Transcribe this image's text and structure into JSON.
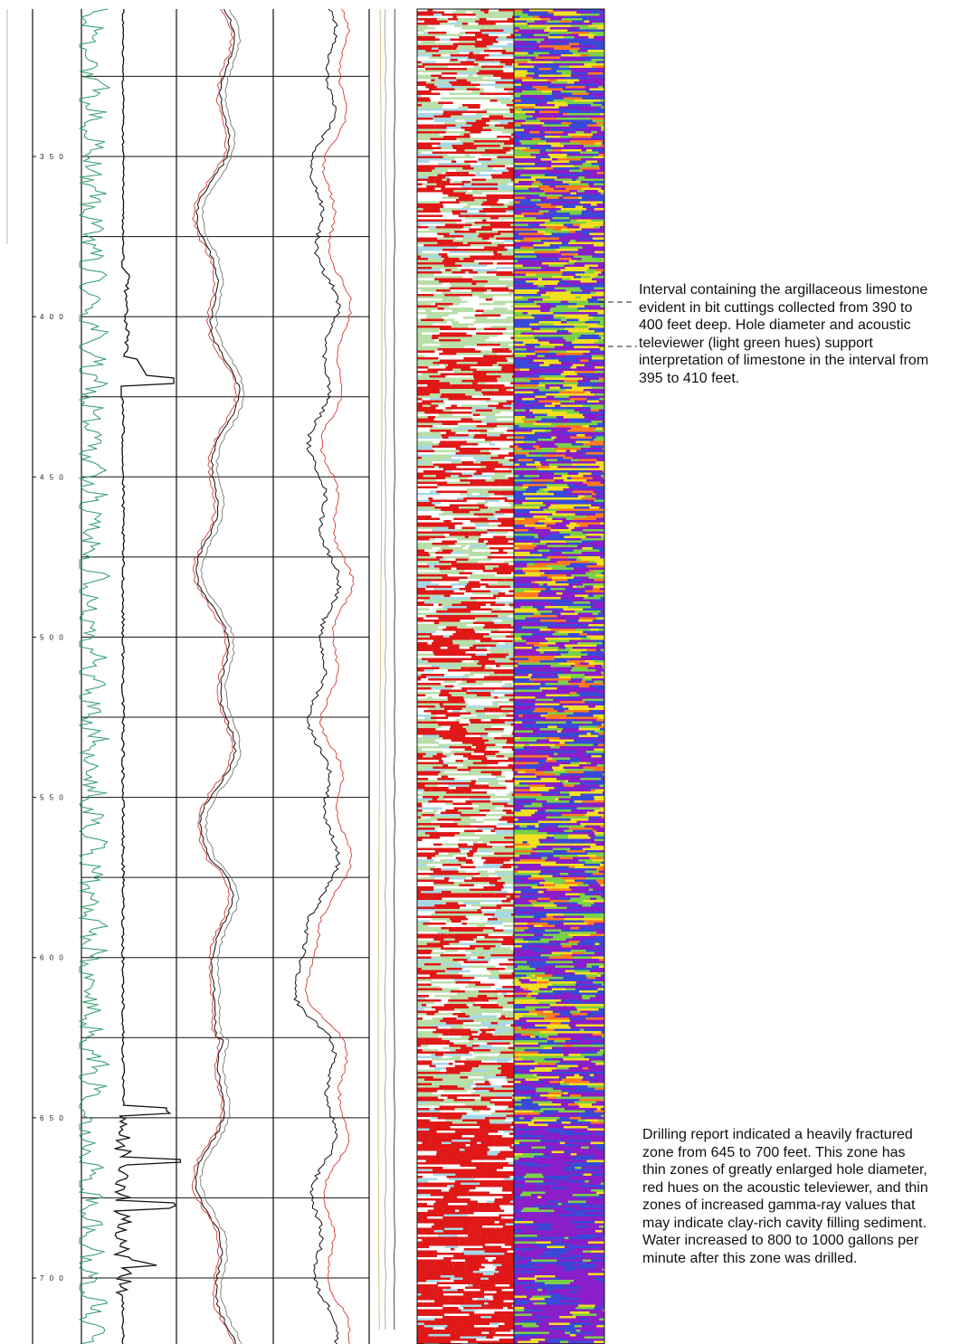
{
  "log": {
    "depth_top_ft": 300,
    "depth_bottom_ft": 730,
    "depth_ticks": [
      {
        "depth": 350,
        "label": "3 5 0"
      },
      {
        "depth": 400,
        "label": "4 0 0"
      },
      {
        "depth": 450,
        "label": "4 5 0"
      },
      {
        "depth": 500,
        "label": "5 0 0"
      },
      {
        "depth": 550,
        "label": "5 5 0"
      },
      {
        "depth": 600,
        "label": "6 0 0"
      },
      {
        "depth": 650,
        "label": "6 5 0"
      },
      {
        "depth": 700,
        "label": "7 0 0"
      }
    ],
    "colors": {
      "gamma": "#2e9a6a",
      "trace": "#111111",
      "resistivity": "#d23a3a",
      "aux_line": "#c9b560",
      "acoustic_amplitude": [
        "#e01818",
        "#ffffff",
        "#b9dfa8",
        "#a8d8e6"
      ],
      "acoustic_traveltime": [
        "#8a1ec8",
        "#3a4ad8",
        "#f0e020",
        "#7ad048",
        "#ff7a20"
      ]
    }
  },
  "annotations": {
    "limestone": [
      "Interval containing the argillaceous limestone",
      "evident in bit cuttings collected from 390 to",
      "400 feet deep. Hole diameter and acoustic",
      "televiewer (light green hues) support",
      "interpretation of limestone in the interval from",
      "395 to 410 feet."
    ],
    "fracture": [
      "Drilling report indicated a heavily fractured",
      "zone from 645 to 700 feet. This zone has",
      "thin zones of greatly enlarged hole diameter,",
      "red hues on the acoustic televiewer, and thin",
      "zones of increased gamma-ray values that",
      "may indicate clay-rich cavity filling sediment.",
      "Water increased to 800 to 1000 gallons per",
      "minute after this zone was drilled."
    ]
  }
}
